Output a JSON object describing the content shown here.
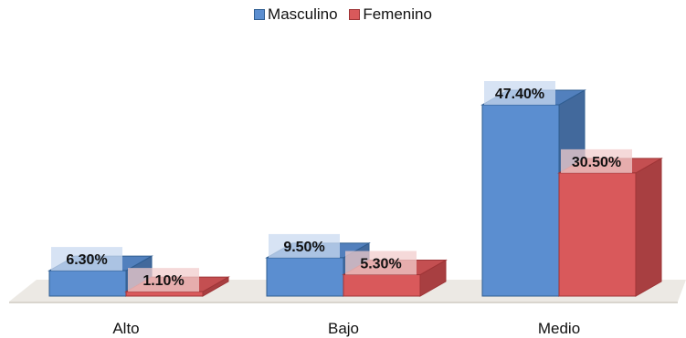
{
  "chart_data": {
    "type": "bar",
    "categories": [
      "Alto",
      "Bajo",
      "Medio"
    ],
    "series": [
      {
        "name": "Masculino",
        "values": [
          6.3,
          9.5,
          47.4
        ],
        "color": "#5b8ed0"
      },
      {
        "name": "Femenino",
        "values": [
          1.1,
          5.3,
          30.5
        ],
        "color": "#d9595b"
      }
    ],
    "value_labels": [
      [
        "6.30%",
        "9.50%",
        "47.40%"
      ],
      [
        "1.10%",
        "5.30%",
        "30.50%"
      ]
    ],
    "ylim": [
      0,
      50
    ],
    "grid": false,
    "legend_position": "top-center",
    "style": "3d-clustered-column"
  }
}
